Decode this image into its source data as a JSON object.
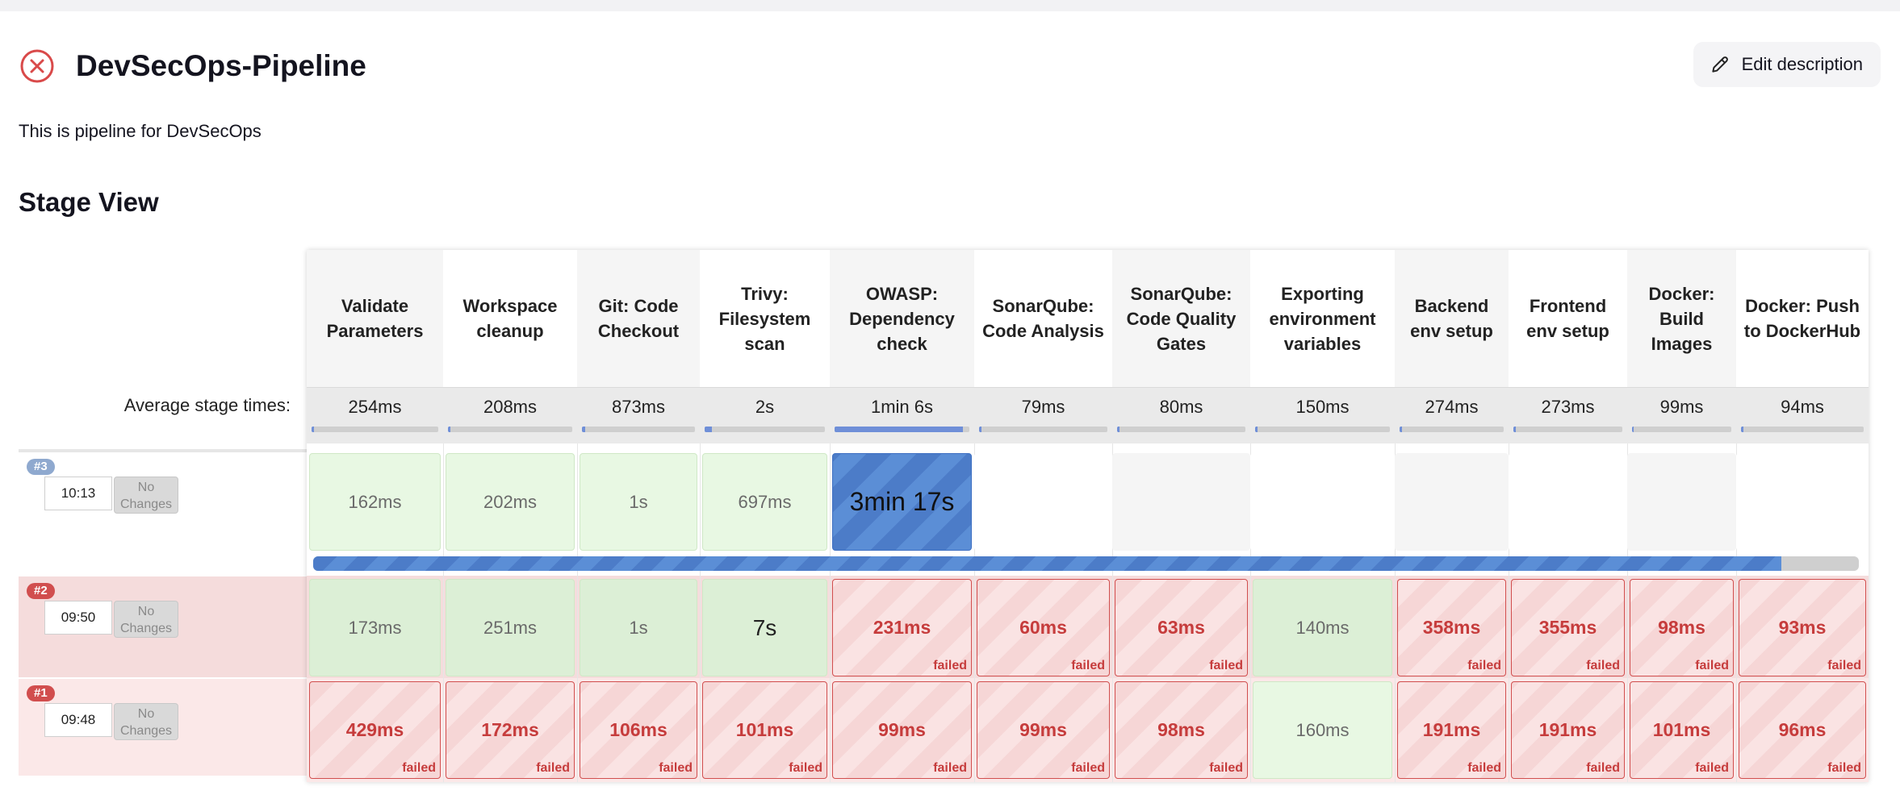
{
  "header": {
    "title": "DevSecOps-Pipeline",
    "edit_label": "Edit description",
    "description": "This is pipeline for DevSecOps"
  },
  "section_title": "Stage View",
  "avg_label": "Average stage times:",
  "colors": {
    "failed": "#c63c3c",
    "success": "#e8f8e3",
    "running": "#5b8ed6",
    "accent_red": "#d94a4a"
  },
  "stages": [
    {
      "name": "Validate Parameters",
      "avg": "254ms"
    },
    {
      "name": "Workspace cleanup",
      "avg": "208ms"
    },
    {
      "name": "Git: Code Checkout",
      "avg": "873ms"
    },
    {
      "name": "Trivy: Filesystem scan",
      "avg": "2s"
    },
    {
      "name": "OWASP: Dependency check",
      "avg": "1min 6s"
    },
    {
      "name": "SonarQube: Code Analysis",
      "avg": "79ms"
    },
    {
      "name": "SonarQube: Code Quality Gates",
      "avg": "80ms"
    },
    {
      "name": "Exporting environment variables",
      "avg": "150ms"
    },
    {
      "name": "Backend env setup",
      "avg": "274ms"
    },
    {
      "name": "Frontend env setup",
      "avg": "273ms"
    },
    {
      "name": "Docker: Build Images",
      "avg": "99ms"
    },
    {
      "name": "Docker: Push to DockerHub",
      "avg": "94ms"
    }
  ],
  "failed_label": "failed",
  "builds": [
    {
      "number": "#3",
      "time": "10:13",
      "changes": "No Changes",
      "progress": 0.95,
      "cells": [
        {
          "value": "162ms",
          "status": "success"
        },
        {
          "value": "202ms",
          "status": "success"
        },
        {
          "value": "1s",
          "status": "success"
        },
        {
          "value": "697ms",
          "status": "success"
        },
        {
          "value": "3min 17s",
          "status": "running"
        },
        {
          "value": "",
          "status": "empty"
        },
        {
          "value": "",
          "status": "empty"
        },
        {
          "value": "",
          "status": "empty"
        },
        {
          "value": "",
          "status": "empty"
        },
        {
          "value": "",
          "status": "empty"
        },
        {
          "value": "",
          "status": "empty"
        },
        {
          "value": "",
          "status": "empty"
        }
      ]
    },
    {
      "number": "#2",
      "time": "09:50",
      "changes": "No Changes",
      "cells": [
        {
          "value": "173ms",
          "status": "success"
        },
        {
          "value": "251ms",
          "status": "success"
        },
        {
          "value": "1s",
          "status": "success"
        },
        {
          "value": "7s",
          "status": "success"
        },
        {
          "value": "231ms",
          "status": "failed"
        },
        {
          "value": "60ms",
          "status": "failed"
        },
        {
          "value": "63ms",
          "status": "failed"
        },
        {
          "value": "140ms",
          "status": "success"
        },
        {
          "value": "358ms",
          "status": "failed"
        },
        {
          "value": "355ms",
          "status": "failed"
        },
        {
          "value": "98ms",
          "status": "failed"
        },
        {
          "value": "93ms",
          "status": "failed"
        }
      ]
    },
    {
      "number": "#1",
      "time": "09:48",
      "changes": "No Changes",
      "cells": [
        {
          "value": "429ms",
          "status": "failed"
        },
        {
          "value": "172ms",
          "status": "failed"
        },
        {
          "value": "106ms",
          "status": "failed"
        },
        {
          "value": "101ms",
          "status": "failed"
        },
        {
          "value": "99ms",
          "status": "failed"
        },
        {
          "value": "99ms",
          "status": "failed"
        },
        {
          "value": "98ms",
          "status": "failed"
        },
        {
          "value": "160ms",
          "status": "success"
        },
        {
          "value": "191ms",
          "status": "failed"
        },
        {
          "value": "191ms",
          "status": "failed"
        },
        {
          "value": "101ms",
          "status": "failed"
        },
        {
          "value": "96ms",
          "status": "failed"
        }
      ]
    }
  ]
}
